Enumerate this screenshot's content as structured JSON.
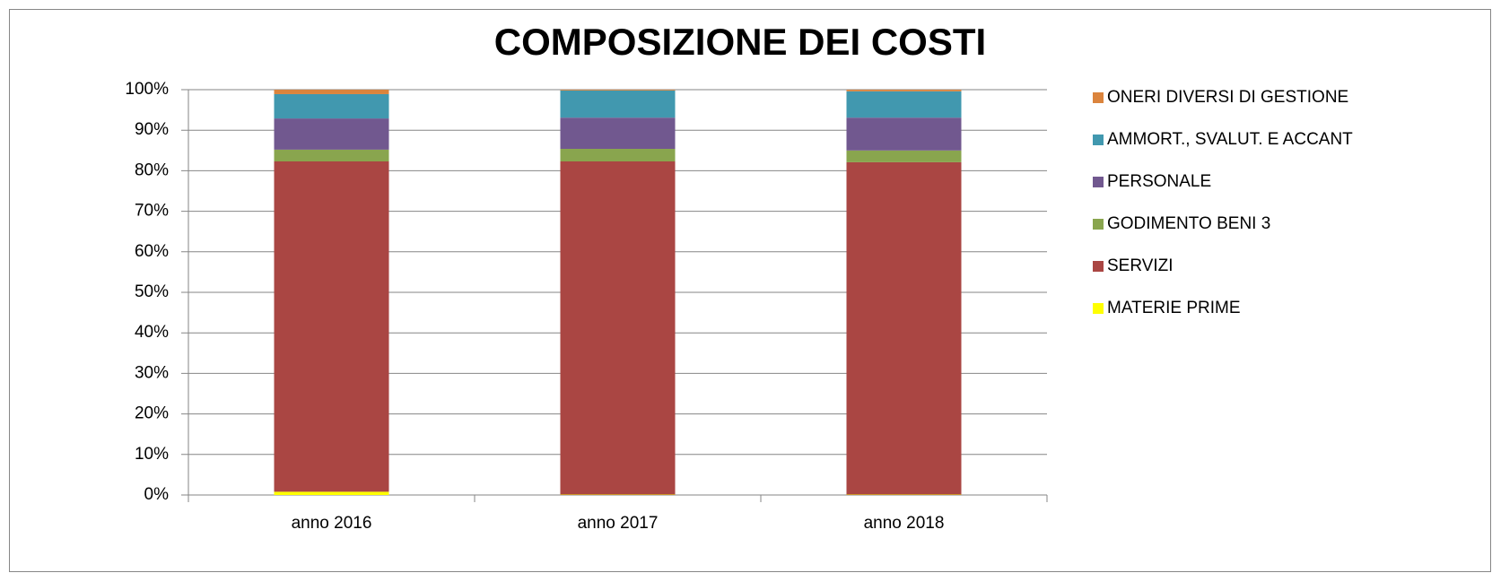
{
  "chart_data": {
    "type": "stacked_bar",
    "title": "COMPOSIZIONE DEI COSTI",
    "categories": [
      "anno 2016",
      "anno 2017",
      "anno 2018"
    ],
    "series": [
      {
        "name": "MATERIE PRIME",
        "color": "#ffff00",
        "values": [
          0.8,
          0.1,
          0.1
        ]
      },
      {
        "name": "SERVIZI",
        "color": "#aa4643",
        "values": [
          81.5,
          82.2,
          82.0
        ]
      },
      {
        "name": "GODIMENTO BENI 3",
        "color": "#89a54e",
        "values": [
          2.9,
          3.1,
          2.9
        ]
      },
      {
        "name": "PERSONALE",
        "color": "#71588f",
        "values": [
          7.7,
          7.7,
          8.1
        ]
      },
      {
        "name": "AMMORT., SVALUT. E ACCANT",
        "color": "#4198af",
        "values": [
          6.0,
          6.7,
          6.5
        ]
      },
      {
        "name": "ONERI DIVERSI DI GESTIONE",
        "color": "#db843d",
        "values": [
          1.1,
          0.2,
          0.4
        ]
      }
    ],
    "ylim": [
      0,
      100
    ],
    "yticks": [
      {
        "value": 0,
        "label": "0%"
      },
      {
        "value": 10,
        "label": "10%"
      },
      {
        "value": 20,
        "label": "20%"
      },
      {
        "value": 30,
        "label": "30%"
      },
      {
        "value": 40,
        "label": "40%"
      },
      {
        "value": 50,
        "label": "50%"
      },
      {
        "value": 60,
        "label": "60%"
      },
      {
        "value": 70,
        "label": "70%"
      },
      {
        "value": 80,
        "label": "80%"
      },
      {
        "value": 90,
        "label": "90%"
      },
      {
        "value": 100,
        "label": "100%"
      }
    ],
    "grid": true,
    "legend": "right"
  }
}
